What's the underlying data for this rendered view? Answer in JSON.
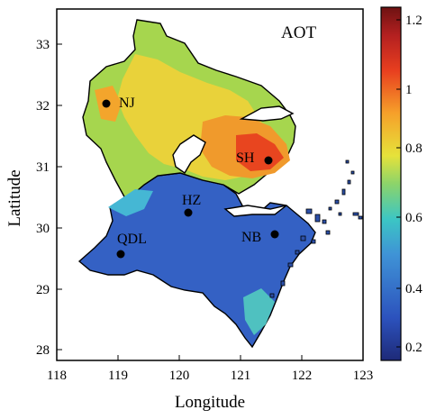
{
  "map": {
    "title": "AOT",
    "x_label": "Longitude",
    "y_label": "Latitude",
    "x_ticks": [
      "118",
      "119",
      "120",
      "121",
      "122",
      "123"
    ],
    "y_ticks": [
      "28",
      "29",
      "30",
      "31",
      "32",
      "33"
    ],
    "cities": [
      {
        "label": "NJ",
        "lon": 118.8,
        "lat": 32.0
      },
      {
        "label": "SH",
        "lon": 121.5,
        "lat": 31.1
      },
      {
        "label": "HZ",
        "lon": 120.15,
        "lat": 30.25
      },
      {
        "label": "NB",
        "lon": 121.55,
        "lat": 29.9
      },
      {
        "label": "QDL",
        "lon": 119.05,
        "lat": 29.55
      }
    ]
  },
  "colorbar": {
    "ticks": [
      "0.2",
      "0.4",
      "0.6",
      "0.8",
      "1",
      "1.2"
    ],
    "range": [
      0.15,
      1.35
    ],
    "colors": [
      "#1f2a7a",
      "#2f57c0",
      "#3f93d6",
      "#3fc6c8",
      "#8fd36a",
      "#e6e23a",
      "#f6a02a",
      "#e8401f",
      "#7a1414"
    ]
  }
}
